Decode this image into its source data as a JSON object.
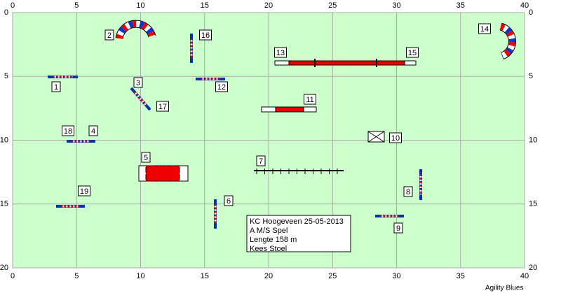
{
  "field": {
    "xticks": [
      0,
      5,
      10,
      15,
      20,
      25,
      30,
      35,
      40
    ],
    "yticks": [
      0,
      5,
      10,
      15,
      20
    ]
  },
  "obstacles": [
    {
      "label": "1"
    },
    {
      "label": "2"
    },
    {
      "label": "3"
    },
    {
      "label": "4"
    },
    {
      "label": "5"
    },
    {
      "label": "6"
    },
    {
      "label": "7"
    },
    {
      "label": "8"
    },
    {
      "label": "9"
    },
    {
      "label": "10"
    },
    {
      "label": "11"
    },
    {
      "label": "12"
    },
    {
      "label": "13"
    },
    {
      "label": "14"
    },
    {
      "label": "15"
    },
    {
      "label": "16"
    },
    {
      "label": "17"
    },
    {
      "label": "18"
    },
    {
      "label": "19"
    }
  ],
  "info": [
    "KC Hoogeveen 25-05-2013",
    "A M/S Spel",
    "Lengte 158 m",
    "Kees Stoel"
  ],
  "footer": "Agility Blues"
}
